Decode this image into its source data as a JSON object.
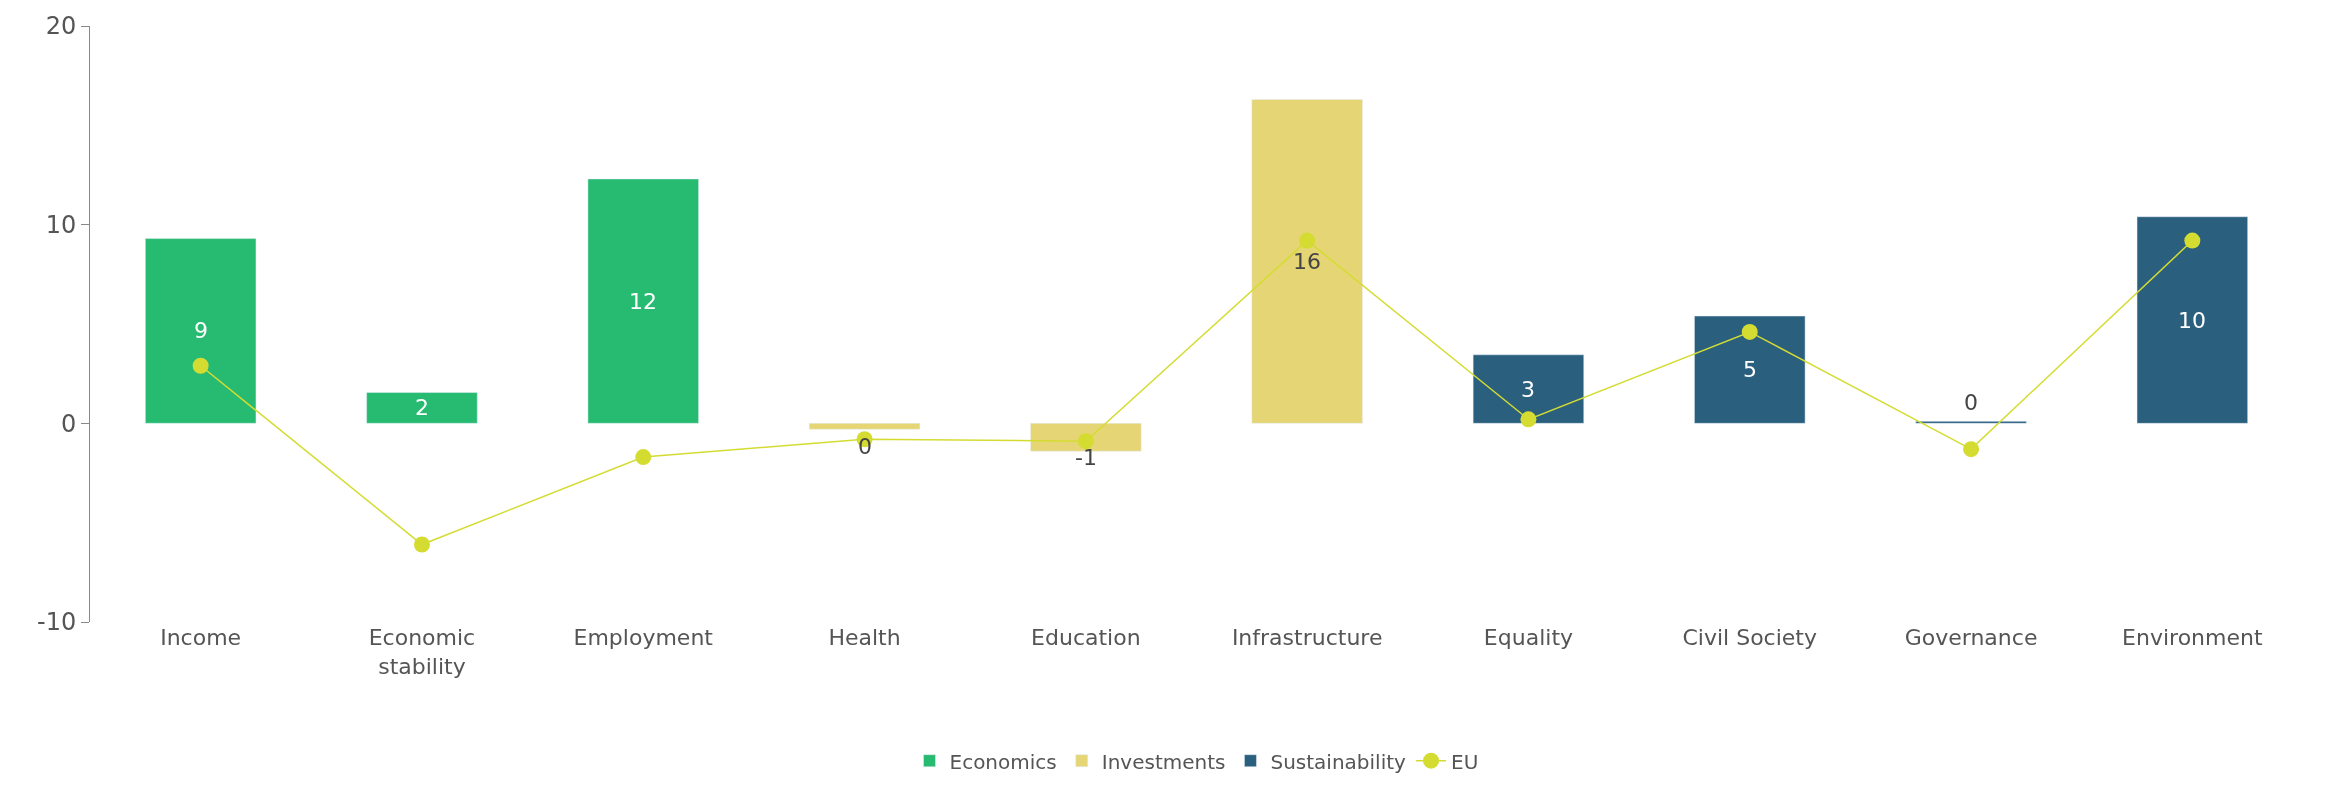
{
  "chart_data": {
    "type": "bar",
    "categories": [
      "Income",
      "Economic stability",
      "Employment",
      "Health",
      "Education",
      "Infrastructure",
      "Equality",
      "Civil Society",
      "Governance",
      "Environment"
    ],
    "series": [
      {
        "name": "Economics",
        "color": "#27bb72",
        "values": [
          9.3,
          1.55,
          12.3,
          null,
          null,
          null,
          null,
          null,
          null,
          null
        ],
        "value_labels": [
          "9",
          "2",
          "12",
          null,
          null,
          null,
          null,
          null,
          null,
          null
        ]
      },
      {
        "name": "Investments",
        "color": "#e5d574",
        "values": [
          null,
          null,
          null,
          -0.3,
          -1.4,
          16.3,
          null,
          null,
          null,
          null
        ],
        "value_labels": [
          null,
          null,
          null,
          "0",
          "-1",
          "16",
          null,
          null,
          null,
          null
        ]
      },
      {
        "name": "Sustainability",
        "color": "#2a5f7e",
        "values": [
          null,
          null,
          null,
          null,
          null,
          null,
          3.45,
          5.4,
          0.1,
          10.4
        ],
        "value_labels": [
          null,
          null,
          null,
          null,
          null,
          null,
          "3",
          "5",
          "0",
          "10"
        ]
      },
      {
        "name": "EU",
        "type": "line",
        "color": "#d4dc32",
        "marker": "circle",
        "values": [
          2.9,
          -6.1,
          -1.7,
          -0.8,
          -0.9,
          9.2,
          0.2,
          4.6,
          -1.3,
          9.2
        ]
      }
    ],
    "ylim": [
      -10,
      20
    ],
    "yticks": [
      -10,
      0,
      10,
      20
    ],
    "legend": "bottom"
  }
}
